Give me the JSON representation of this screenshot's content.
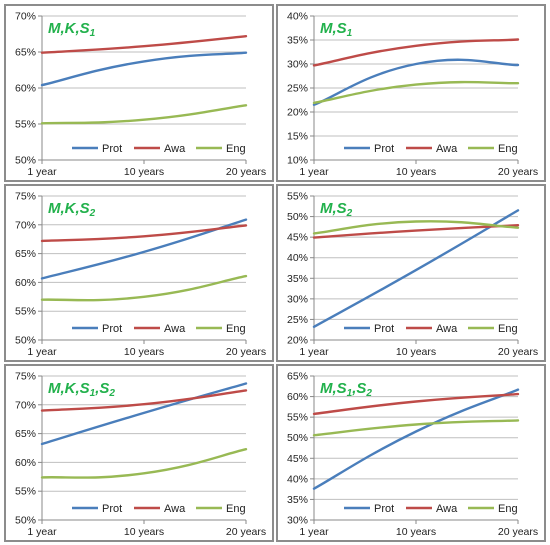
{
  "colors": {
    "Prot": "#4a7ebb",
    "Awa": "#be4b48",
    "Eng": "#98b954",
    "title": "#22b14c"
  },
  "chart_data": [
    {
      "type": "line",
      "title": [
        {
          "t": "M,K,S"
        },
        {
          "sub": "1"
        }
      ],
      "x": [
        "1 year",
        "10 years",
        "20 years"
      ],
      "ylim": [
        0.5,
        0.7
      ],
      "yticks": [
        "50%",
        "55%",
        "60%",
        "65%",
        "70%"
      ],
      "legend": "bottom",
      "series": [
        {
          "name": "Prot",
          "values": [
            0.604,
            0.637,
            0.649
          ]
        },
        {
          "name": "Awa",
          "values": [
            0.649,
            0.658,
            0.672
          ]
        },
        {
          "name": "Eng",
          "values": [
            0.551,
            0.556,
            0.576
          ]
        }
      ]
    },
    {
      "type": "line",
      "title": [
        {
          "t": "M,S"
        },
        {
          "sub": "1"
        }
      ],
      "x": [
        "1 year",
        "10 years",
        "20 years"
      ],
      "ylim": [
        0.1,
        0.4
      ],
      "yticks": [
        "10%",
        "15%",
        "20%",
        "25%",
        "30%",
        "35%",
        "40%"
      ],
      "legend": "bottom",
      "series": [
        {
          "name": "Prot",
          "values": [
            0.215,
            0.3,
            0.298
          ]
        },
        {
          "name": "Awa",
          "values": [
            0.297,
            0.338,
            0.351
          ]
        },
        {
          "name": "Eng",
          "values": [
            0.219,
            0.257,
            0.26
          ]
        }
      ]
    },
    {
      "type": "line",
      "title": [
        {
          "t": "M,K,S"
        },
        {
          "sub": "2"
        }
      ],
      "x": [
        "1 year",
        "10 years",
        "20 years"
      ],
      "ylim": [
        0.5,
        0.75
      ],
      "yticks": [
        "50%",
        "55%",
        "60%",
        "65%",
        "70%",
        "75%"
      ],
      "legend": "bottom",
      "series": [
        {
          "name": "Prot",
          "values": [
            0.607,
            0.653,
            0.709
          ]
        },
        {
          "name": "Awa",
          "values": [
            0.672,
            0.68,
            0.699
          ]
        },
        {
          "name": "Eng",
          "values": [
            0.57,
            0.575,
            0.611
          ]
        }
      ]
    },
    {
      "type": "line",
      "title": [
        {
          "t": "M,S"
        },
        {
          "sub": "2"
        }
      ],
      "x": [
        "1 year",
        "10 years",
        "20 years"
      ],
      "ylim": [
        0.2,
        0.55
      ],
      "yticks": [
        "20%",
        "25%",
        "30%",
        "35%",
        "40%",
        "45%",
        "50%",
        "55%"
      ],
      "legend": "bottom",
      "series": [
        {
          "name": "Prot",
          "values": [
            0.232,
            0.37,
            0.515
          ]
        },
        {
          "name": "Awa",
          "values": [
            0.449,
            0.466,
            0.479
          ]
        },
        {
          "name": "Eng",
          "values": [
            0.459,
            0.488,
            0.473
          ]
        }
      ]
    },
    {
      "type": "line",
      "title": [
        {
          "t": "M,K,S"
        },
        {
          "sub": "1"
        },
        {
          "t": ",S"
        },
        {
          "sub": "2"
        }
      ],
      "x": [
        "1 year",
        "10 years",
        "20 years"
      ],
      "ylim": [
        0.5,
        0.75
      ],
      "yticks": [
        "50%",
        "55%",
        "60%",
        "65%",
        "70%",
        "75%"
      ],
      "legend": "bottom",
      "series": [
        {
          "name": "Prot",
          "values": [
            0.632,
            0.686,
            0.737
          ]
        },
        {
          "name": "Awa",
          "values": [
            0.69,
            0.701,
            0.725
          ]
        },
        {
          "name": "Eng",
          "values": [
            0.574,
            0.581,
            0.623
          ]
        }
      ]
    },
    {
      "type": "line",
      "title": [
        {
          "t": "M,S"
        },
        {
          "sub": "1"
        },
        {
          "t": ",S"
        },
        {
          "sub": "2"
        }
      ],
      "x": [
        "1 year",
        "10 years",
        "20 years"
      ],
      "ylim": [
        0.3,
        0.65
      ],
      "yticks": [
        "30%",
        "35%",
        "40%",
        "45%",
        "50%",
        "55%",
        "60%",
        "65%"
      ],
      "legend": "bottom",
      "series": [
        {
          "name": "Prot",
          "values": [
            0.376,
            0.515,
            0.617
          ]
        },
        {
          "name": "Awa",
          "values": [
            0.558,
            0.588,
            0.606
          ]
        },
        {
          "name": "Eng",
          "values": [
            0.506,
            0.532,
            0.542
          ]
        }
      ]
    }
  ]
}
